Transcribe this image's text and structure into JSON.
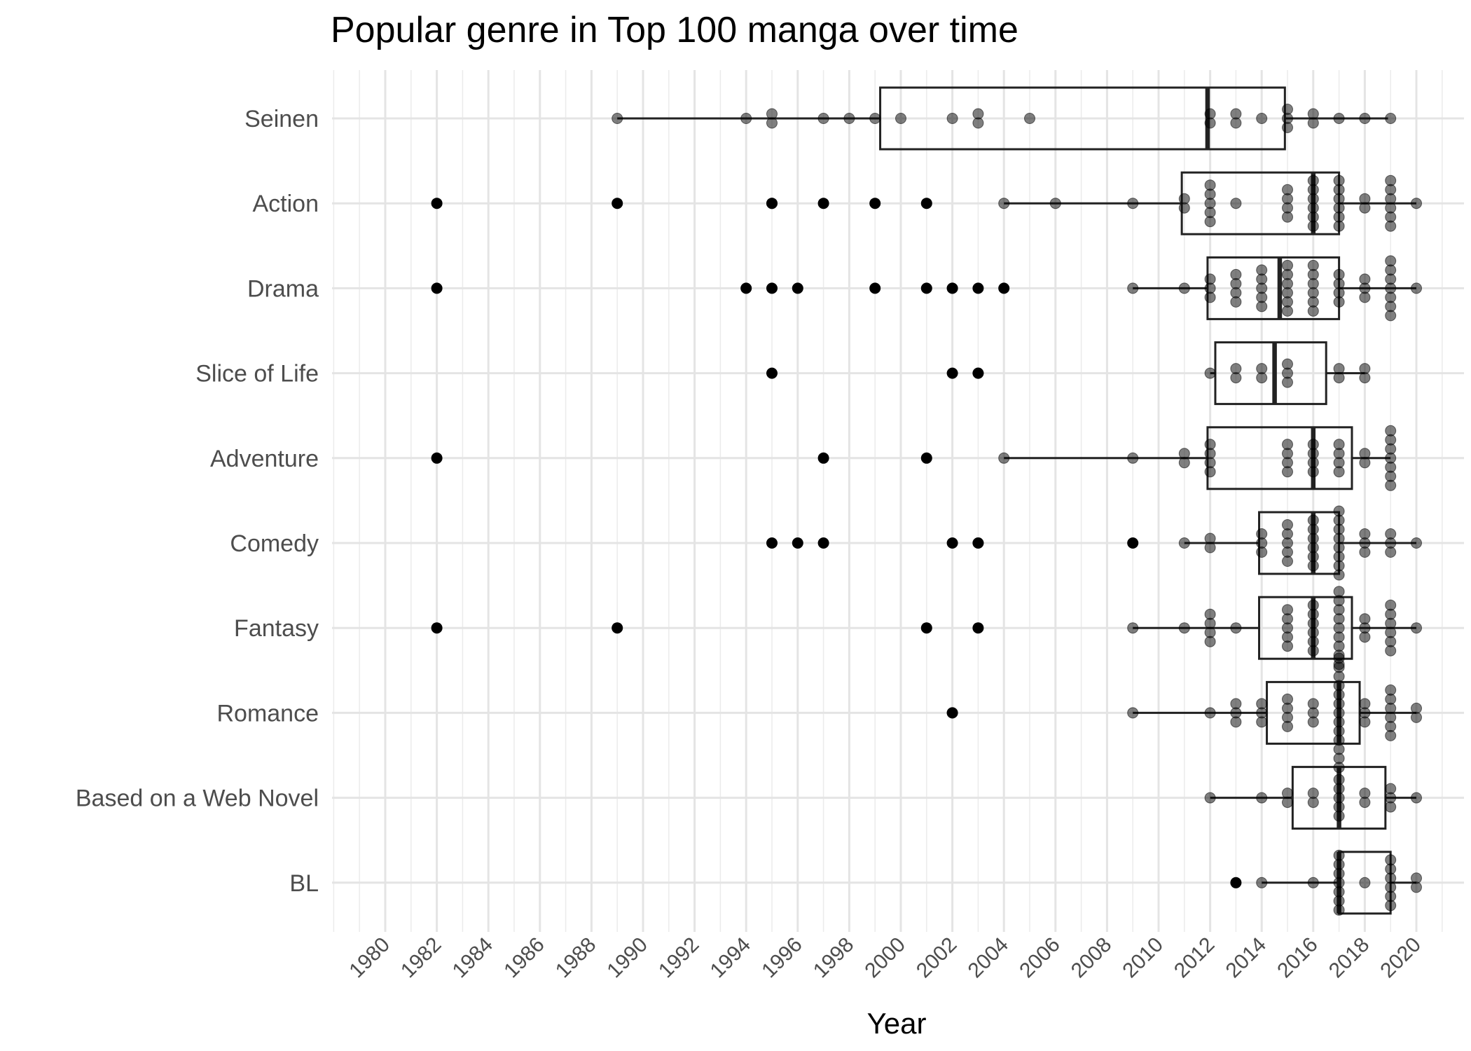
{
  "chart_data": {
    "type": "boxplot",
    "title": "Popular genre in Top 100 manga over time",
    "xlabel": "Year",
    "ylabel": "",
    "xlim": [
      1978,
      2021
    ],
    "x_ticks": [
      1980,
      1982,
      1984,
      1986,
      1988,
      1990,
      1992,
      1994,
      1996,
      1998,
      2000,
      2002,
      2004,
      2006,
      2008,
      2010,
      2012,
      2014,
      2016,
      2018,
      2020
    ],
    "grid": true,
    "categories": [
      "Seinen",
      "Action",
      "Drama",
      "Slice of Life",
      "Adventure",
      "Comedy",
      "Fantasy",
      "Romance",
      "Based on a Web Novel",
      "BL"
    ],
    "series": [
      {
        "name": "Seinen",
        "box": {
          "whisker_low": 1989,
          "q1": 1999.2,
          "median": 2011.9,
          "q3": 2014.9,
          "whisker_high": 2018.9
        },
        "outliers": [],
        "points": [
          1989,
          1994,
          1995,
          1995,
          1997,
          1998,
          1999,
          2000,
          2002,
          2003,
          2003,
          2005,
          2012,
          2012,
          2013,
          2013,
          2014,
          2015,
          2015,
          2015,
          2016,
          2016,
          2017,
          2018,
          2019
        ]
      },
      {
        "name": "Action",
        "box": {
          "whisker_low": 2004,
          "q1": 2010.9,
          "median": 2016,
          "q3": 2017,
          "whisker_high": 2020
        },
        "outliers": [
          1982,
          1989,
          1995,
          1997,
          1999,
          2001
        ],
        "points": [
          1995,
          2004,
          2006,
          2009,
          2011,
          2011,
          2012,
          2012,
          2012,
          2012,
          2012,
          2013,
          2015,
          2015,
          2015,
          2015,
          2016,
          2016,
          2016,
          2016,
          2016,
          2016,
          2017,
          2017,
          2017,
          2017,
          2017,
          2017,
          2018,
          2018,
          2019,
          2019,
          2019,
          2019,
          2019,
          2019,
          2020
        ]
      },
      {
        "name": "Drama",
        "box": {
          "whisker_low": 2009,
          "q1": 2011.9,
          "median": 2014.7,
          "q3": 2017,
          "whisker_high": 2020
        },
        "outliers": [
          1982,
          1994,
          1995,
          1996,
          1999,
          2001,
          2002,
          2003,
          2004
        ],
        "points": [
          2002,
          2009,
          2011,
          2012,
          2012,
          2012,
          2013,
          2013,
          2013,
          2013,
          2014,
          2014,
          2014,
          2014,
          2014,
          2015,
          2015,
          2015,
          2015,
          2015,
          2015,
          2016,
          2016,
          2016,
          2016,
          2016,
          2016,
          2017,
          2017,
          2017,
          2017,
          2018,
          2018,
          2018,
          2019,
          2019,
          2019,
          2019,
          2019,
          2019,
          2019,
          2020
        ]
      },
      {
        "name": "Slice of Life",
        "box": {
          "whisker_low": 2012,
          "q1": 2012.2,
          "median": 2014.5,
          "q3": 2016.5,
          "whisker_high": 2018
        },
        "outliers": [
          1995,
          2002,
          2003
        ],
        "points": [
          2003,
          2012,
          2013,
          2013,
          2014,
          2014,
          2015,
          2015,
          2015,
          2017,
          2017,
          2018,
          2018
        ]
      },
      {
        "name": "Adventure",
        "box": {
          "whisker_low": 2004,
          "q1": 2011.9,
          "median": 2016,
          "q3": 2017.5,
          "whisker_high": 2019
        },
        "outliers": [
          1982,
          1997,
          2001
        ],
        "points": [
          2004,
          2009,
          2011,
          2011,
          2012,
          2012,
          2012,
          2012,
          2015,
          2015,
          2015,
          2015,
          2016,
          2016,
          2016,
          2016,
          2017,
          2017,
          2017,
          2017,
          2018,
          2018,
          2019,
          2019,
          2019,
          2019,
          2019,
          2019,
          2019
        ]
      },
      {
        "name": "Comedy",
        "box": {
          "whisker_low": 2011,
          "q1": 2013.9,
          "median": 2016,
          "q3": 2017,
          "whisker_high": 2020
        },
        "outliers": [
          1995,
          1996,
          1997,
          2002,
          2003,
          2009
        ],
        "points": [
          2003,
          2011,
          2012,
          2012,
          2014,
          2014,
          2014,
          2015,
          2015,
          2015,
          2015,
          2015,
          2016,
          2016,
          2016,
          2016,
          2016,
          2016,
          2017,
          2017,
          2017,
          2017,
          2017,
          2017,
          2017,
          2017,
          2018,
          2018,
          2018,
          2019,
          2019,
          2019,
          2020
        ]
      },
      {
        "name": "Fantasy",
        "box": {
          "whisker_low": 2009,
          "q1": 2013.9,
          "median": 2016,
          "q3": 2017.5,
          "whisker_high": 2020
        },
        "outliers": [
          1982,
          1989,
          2001,
          2003
        ],
        "points": [
          2009,
          2011,
          2012,
          2012,
          2012,
          2012,
          2013,
          2015,
          2015,
          2015,
          2015,
          2015,
          2016,
          2016,
          2016,
          2016,
          2016,
          2016,
          2017,
          2017,
          2017,
          2017,
          2017,
          2017,
          2017,
          2017,
          2017,
          2018,
          2018,
          2018,
          2019,
          2019,
          2019,
          2019,
          2019,
          2019,
          2020
        ]
      },
      {
        "name": "Romance",
        "box": {
          "whisker_low": 2009,
          "q1": 2014.2,
          "median": 2017,
          "q3": 2017.8,
          "whisker_high": 2020
        },
        "outliers": [
          2002
        ],
        "points": [
          2002,
          2009,
          2012,
          2013,
          2013,
          2013,
          2014,
          2014,
          2014,
          2015,
          2015,
          2015,
          2015,
          2016,
          2016,
          2016,
          2017,
          2017,
          2017,
          2017,
          2017,
          2017,
          2017,
          2017,
          2017,
          2017,
          2017,
          2017,
          2017,
          2018,
          2018,
          2018,
          2019,
          2019,
          2019,
          2019,
          2019,
          2019,
          2020,
          2020
        ]
      },
      {
        "name": "Based on a Web Novel",
        "box": {
          "whisker_low": 2012,
          "q1": 2015.2,
          "median": 2017,
          "q3": 2018.8,
          "whisker_high": 2020
        },
        "outliers": [],
        "points": [
          2012,
          2014,
          2015,
          2015,
          2016,
          2016,
          2017,
          2017,
          2017,
          2017,
          2017,
          2018,
          2018,
          2019,
          2019,
          2019,
          2020
        ]
      },
      {
        "name": "BL",
        "box": {
          "whisker_low": 2014,
          "q1": 2017,
          "median": 2017,
          "q3": 2019,
          "whisker_high": 2020
        },
        "outliers": [
          2013
        ],
        "points": [
          2014,
          2016,
          2017,
          2017,
          2017,
          2017,
          2017,
          2017,
          2017,
          2018,
          2019,
          2019,
          2019,
          2019,
          2019,
          2019,
          2020,
          2020
        ]
      }
    ]
  }
}
